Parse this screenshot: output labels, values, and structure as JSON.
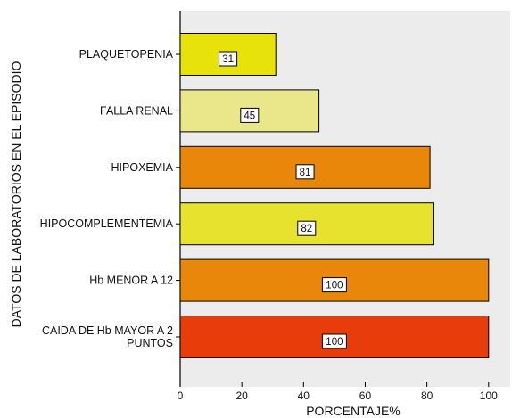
{
  "chart_data": {
    "type": "bar",
    "orientation": "horizontal",
    "categories": [
      [
        "PLAQUETOPENIA"
      ],
      [
        "FALLA RENAL"
      ],
      [
        "HIPOXEMIA"
      ],
      [
        "HIPOCOMPLEMENTEMIA"
      ],
      [
        "Hb MENOR A 12"
      ],
      [
        "CAIDA DE Hb MAYOR A 2",
        "PUNTOS"
      ]
    ],
    "values": [
      31,
      45,
      81,
      82,
      100,
      100
    ],
    "data_labels": [
      "31",
      "45",
      "81",
      "82",
      "100",
      "100"
    ],
    "bar_colors": [
      "#e6e20a",
      "#eae68a",
      "#e8870a",
      "#e6e22e",
      "#e8870a",
      "#e83c0a"
    ],
    "xlabel": "PORCENTAJE%",
    "ylabel": "DATOS DE LABORATORIOS EN EL EPISODIO",
    "xlim": [
      0,
      107
    ],
    "xticks": [
      0,
      20,
      40,
      60,
      80,
      100
    ],
    "grid": false,
    "plot_background": "#ececec"
  }
}
